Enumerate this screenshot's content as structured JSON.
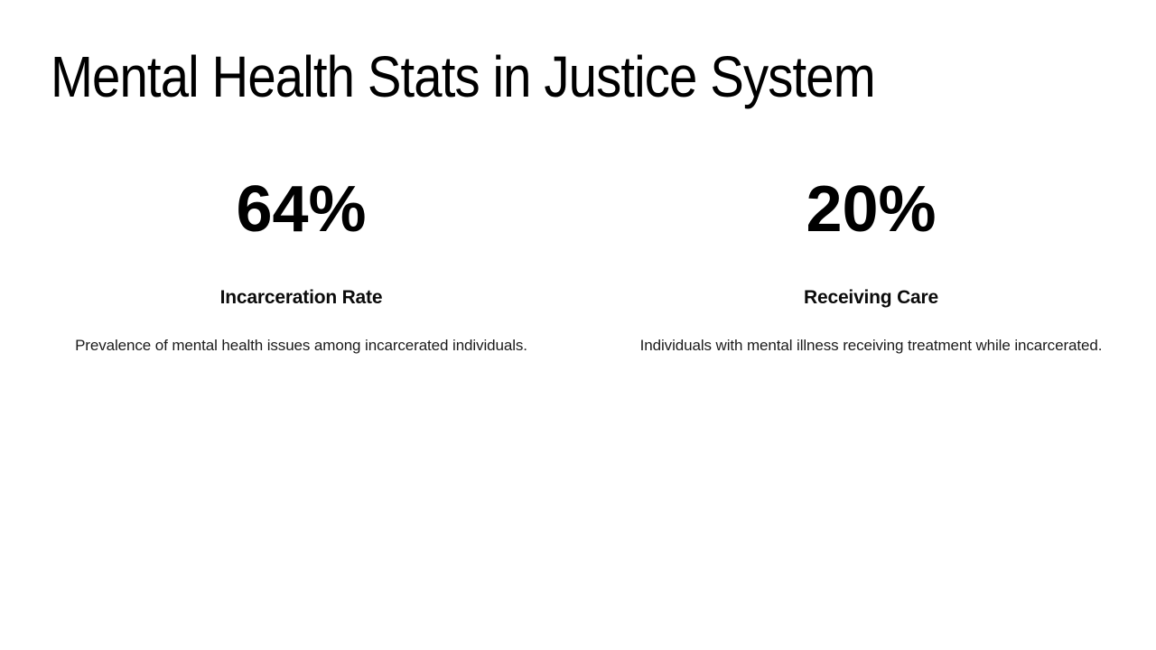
{
  "page": {
    "title": "Mental Health Stats in Justice System"
  },
  "stats": [
    {
      "value": "64%",
      "label": "Incarceration Rate",
      "description": "Prevalence of mental health issues among incarcerated individuals."
    },
    {
      "value": "20%",
      "label": "Receiving Care",
      "description": "Individuals with mental illness receiving treatment while incarcerated."
    }
  ],
  "colors": {
    "background": "#ffffff",
    "heading": "#000000",
    "body_text": "#1a1a1a"
  }
}
